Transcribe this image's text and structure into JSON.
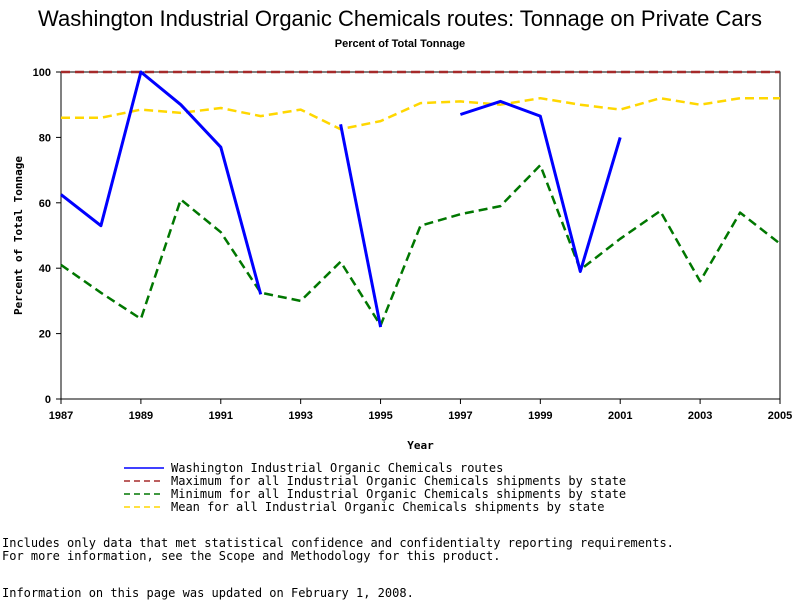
{
  "chart_data": {
    "type": "line",
    "title": "Washington Industrial Organic Chemicals routes: Tonnage on Private Cars",
    "subtitle": "Percent of Total Tonnage",
    "xlabel": "Year",
    "ylabel": "Percent of Total Tonnage",
    "xlim": [
      1987,
      2005
    ],
    "ylim": [
      0,
      100
    ],
    "x_ticks": [
      1987,
      1989,
      1991,
      1993,
      1995,
      1997,
      1999,
      2001,
      2003,
      2005
    ],
    "y_ticks": [
      0,
      20,
      40,
      60,
      80,
      100
    ],
    "grid": false,
    "legend_position": "bottom",
    "x": [
      1987,
      1988,
      1989,
      1990,
      1991,
      1992,
      1993,
      1994,
      1995,
      1996,
      1997,
      1998,
      1999,
      2000,
      2001,
      2002,
      2003,
      2004,
      2005
    ],
    "series": [
      {
        "name": "Washington Industrial Organic Chemicals routes",
        "color": "#0000ff",
        "style": "solid",
        "values": [
          62.5,
          53,
          100,
          90,
          77,
          32,
          null,
          84,
          22,
          null,
          87,
          91,
          86.5,
          39,
          80,
          null,
          null,
          null,
          null
        ]
      },
      {
        "name": "Maximum for all Industrial Organic Chemicals shipments by state",
        "color": "#a52a2a",
        "style": "dashed",
        "values": [
          100,
          100,
          100,
          100,
          100,
          100,
          100,
          100,
          100,
          100,
          100,
          100,
          100,
          100,
          100,
          100,
          100,
          100,
          100
        ]
      },
      {
        "name": "Minimum for all Industrial Organic Chemicals shipments by state",
        "color": "#007700",
        "style": "dashed",
        "values": [
          41,
          32.5,
          24.5,
          61,
          51,
          32.5,
          30,
          42,
          22.5,
          53,
          56.5,
          59,
          71.5,
          39.5,
          49,
          57.5,
          36,
          57,
          47.5
        ]
      },
      {
        "name": "Mean for all Industrial Organic Chemicals shipments by state",
        "color": "#ffd700",
        "style": "dashed",
        "values": [
          86,
          86,
          88.5,
          87.5,
          89,
          86.5,
          88.5,
          82.5,
          85,
          90.5,
          91,
          90,
          92,
          90,
          88.5,
          92,
          90,
          92,
          92
        ]
      }
    ]
  },
  "footnotes": {
    "line1": "Includes only data that met statistical confidence and confidentialty reporting requirements.",
    "line2": "For more information, see the Scope and Methodology for this product.",
    "line3": "Information on this page was updated on February 1, 2008."
  }
}
